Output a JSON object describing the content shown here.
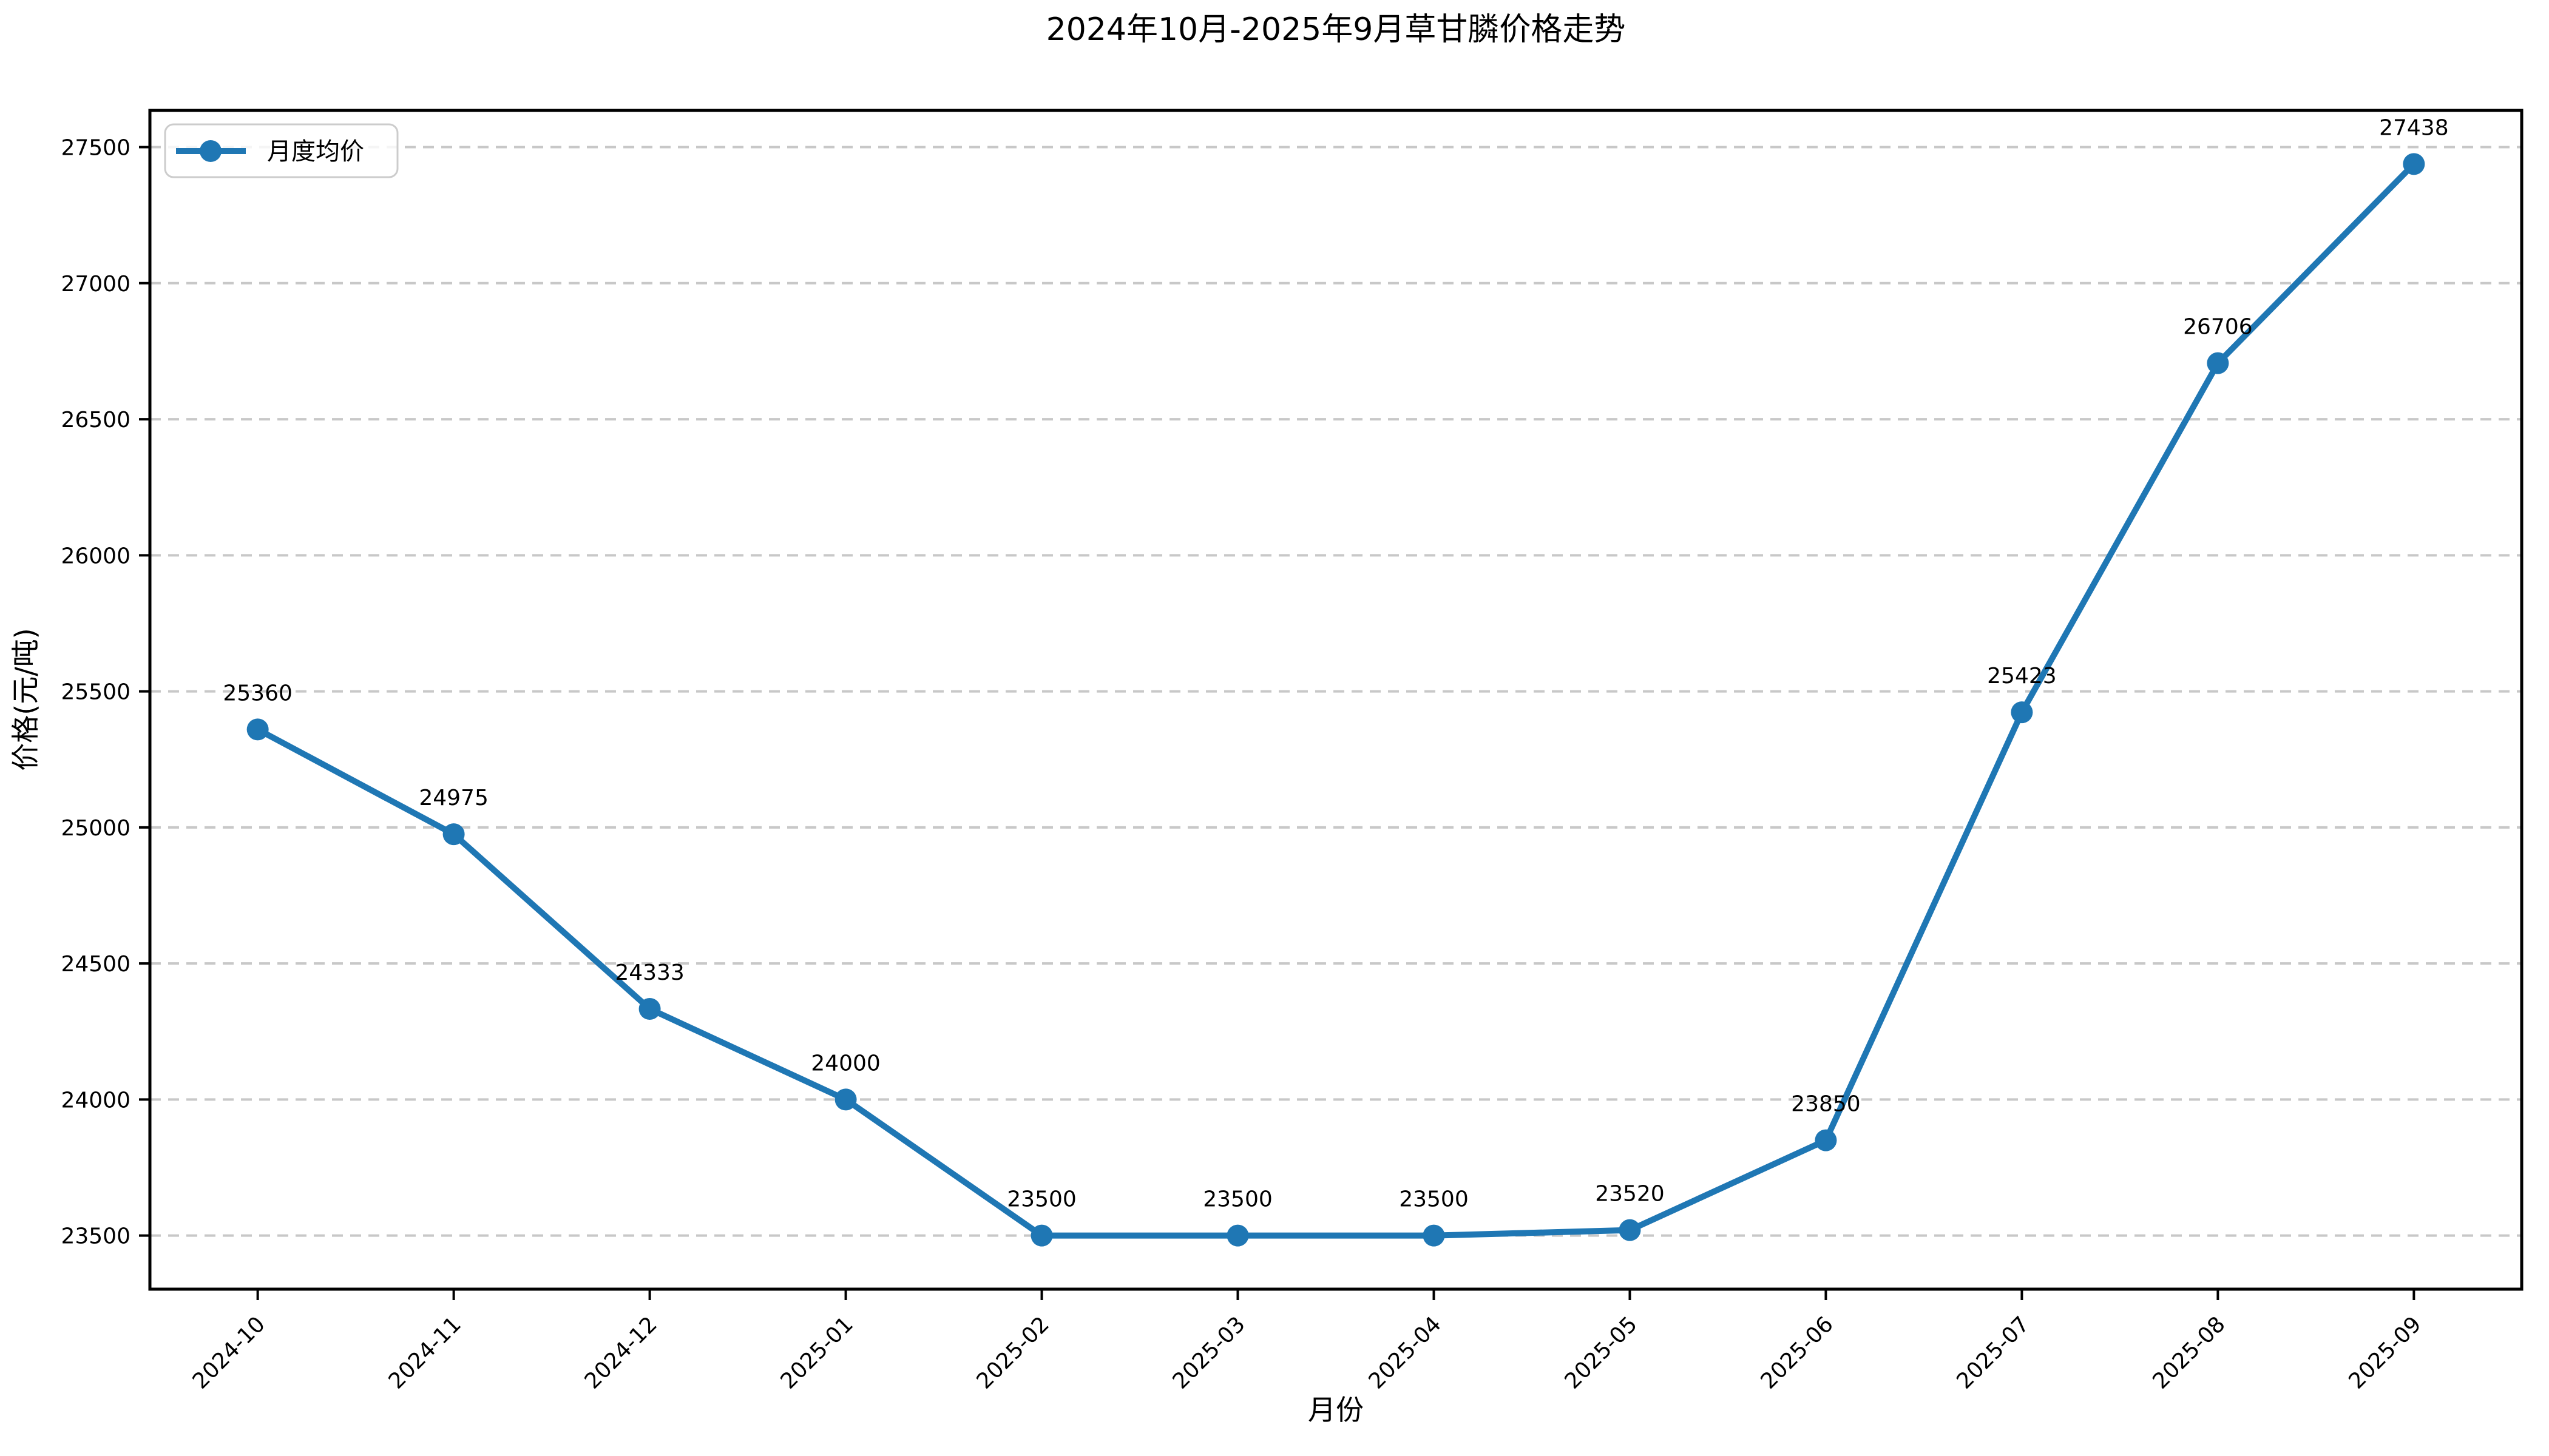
{
  "title": "2024年10月-2025年9月草甘膦价格走势",
  "chart_data": {
    "type": "line",
    "title": "2024年10月-2025年9月草甘膦价格走势",
    "xlabel": "月份",
    "ylabel": "价格(元/吨)",
    "categories": [
      "2024-10",
      "2024-11",
      "2024-12",
      "2025-01",
      "2025-02",
      "2025-03",
      "2025-04",
      "2025-05",
      "2025-06",
      "2025-07",
      "2025-08",
      "2025-09"
    ],
    "series": [
      {
        "name": "月度均价",
        "values": [
          25360,
          24975,
          24333,
          24000,
          23500,
          23500,
          23500,
          23520,
          23850,
          25423,
          26706,
          27438
        ]
      }
    ],
    "show_point_labels": true,
    "yticks": [
      23500,
      24000,
      24500,
      25000,
      25500,
      26000,
      26500,
      27000,
      27500
    ],
    "ylim": [
      23303,
      27635
    ],
    "grid": "horizontal-dashed",
    "legend_position": "upper-left",
    "colors": {
      "line": "#1f77b4",
      "marker": "#1f77b4",
      "grid": "#c8c8c8",
      "axis": "#000000",
      "text": "#000000",
      "legend_border": "#cccccc",
      "background": "#ffffff"
    }
  }
}
